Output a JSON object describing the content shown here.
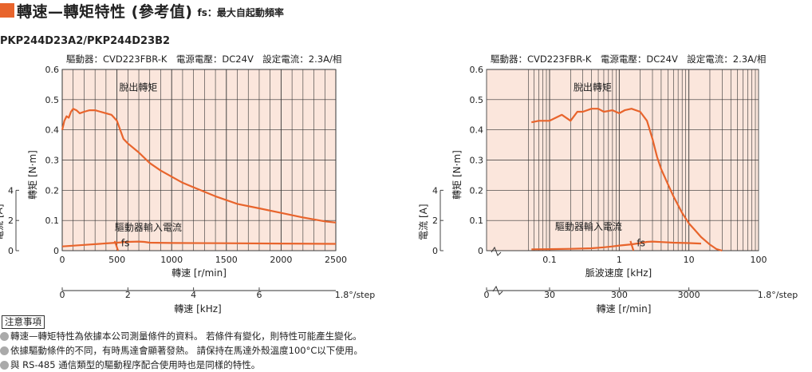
{
  "header": {
    "title": "轉速—轉矩特性 (參考值)",
    "subtitle": "fs：最大自起動頻率"
  },
  "model_label": "PKP244D23A2/PKP244D23B2",
  "notes": {
    "title": "注意事項",
    "items": [
      "轉速—轉矩特性為依據本公司測量條件的資料。 若條件有變化，則特性可能產生變化。",
      "依據驅動條件的不同，有時馬達會顯著發熱。 請保持在馬達外殼溫度100°C以下使用。",
      "與 RS-485 通信類型的驅動程序配合使用時也是同樣的特性。"
    ]
  },
  "colors": {
    "accent": "#e8642c",
    "curve": "#e8642c",
    "plot_bg": "#fbe6dc",
    "grid": "#333333"
  },
  "chart_data": [
    {
      "type": "line",
      "conditions": "驅動器：CVD223FBR-K　電源電壓：DC24V　設定電流：2.3A/相",
      "x_axis": {
        "label": "轉速 [r/min]",
        "range": [
          0,
          2500
        ],
        "ticks": [
          "0",
          "500",
          "1000",
          "1500",
          "2000",
          "2500"
        ]
      },
      "x_axis2": {
        "label": "轉速 [kHz]",
        "range": [
          0,
          8.333
        ],
        "ticks": [
          "0",
          "2",
          "4",
          "6"
        ],
        "end_label": "1.8°/step"
      },
      "y_axis": {
        "label": "轉矩 [N·m]",
        "range": [
          0,
          0.6
        ],
        "ticks": [
          "0",
          "0.1",
          "0.2",
          "0.3",
          "0.4",
          "0.5",
          "0.6"
        ]
      },
      "y_axis2": {
        "label": "電流 [A]",
        "range": [
          0,
          4
        ],
        "ticks": [
          "0",
          "2",
          "4"
        ]
      },
      "grid": true,
      "series": [
        {
          "name": "脫出轉矩",
          "axis": "torque",
          "x": [
            0,
            20,
            40,
            60,
            80,
            100,
            130,
            160,
            200,
            250,
            300,
            350,
            400,
            450,
            500,
            530,
            560,
            600,
            700,
            800,
            900,
            1000,
            1100,
            1200,
            1400,
            1600,
            1800,
            2000,
            2200,
            2400,
            2500
          ],
          "y": [
            0.4,
            0.43,
            0.445,
            0.44,
            0.46,
            0.47,
            0.465,
            0.455,
            0.46,
            0.465,
            0.465,
            0.46,
            0.455,
            0.45,
            0.43,
            0.4,
            0.37,
            0.355,
            0.325,
            0.29,
            0.265,
            0.245,
            0.225,
            0.21,
            0.18,
            0.155,
            0.14,
            0.125,
            0.11,
            0.097,
            0.093
          ]
        },
        {
          "name": "驅動器輸入電流",
          "axis": "current",
          "x": [
            0,
            200,
            400,
            500,
            600,
            700,
            750,
            800,
            1000,
            1500,
            2000,
            2500
          ],
          "y": [
            0.28,
            0.38,
            0.48,
            0.53,
            0.58,
            0.6,
            0.58,
            0.53,
            0.51,
            0.49,
            0.47,
            0.45
          ]
        },
        {
          "name": "fs",
          "axis": "torque",
          "x": [
            480,
            510
          ],
          "y": [
            0.032,
            0.0
          ]
        }
      ]
    },
    {
      "type": "line",
      "conditions": "驅動器：CVD223FBR-K　電源電壓：DC24V　設定電流：2.3A/相",
      "x_axis": {
        "label": "脈波速度 [kHz]",
        "scale": "log",
        "range": [
          0.05,
          100
        ],
        "ticks": [
          "0.1",
          "1",
          "10",
          "100"
        ]
      },
      "x_axis2": {
        "label": "轉速 [r/min]",
        "scale": "log",
        "ticks": [
          "0",
          "30",
          "300",
          "3000"
        ],
        "end_label": "1.8°/step"
      },
      "y_axis": {
        "label": "轉矩 [N·m]",
        "range": [
          0,
          0.6
        ],
        "ticks": [
          "0",
          "0.1",
          "0.2",
          "0.3",
          "0.4",
          "0.5",
          "0.6"
        ]
      },
      "y_axis2": {
        "label": "電流 [A]",
        "range": [
          0,
          4
        ],
        "ticks": [
          "0",
          "2",
          "4"
        ]
      },
      "grid": true,
      "series": [
        {
          "name": "脫出轉矩",
          "axis": "torque",
          "x": [
            0.055,
            0.07,
            0.1,
            0.15,
            0.2,
            0.25,
            0.3,
            0.4,
            0.5,
            0.6,
            0.8,
            1.0,
            1.2,
            1.5,
            2.0,
            2.5,
            3.0,
            3.5,
            4.0,
            5.0,
            6.0,
            8.0,
            10,
            12,
            15,
            20,
            25,
            30
          ],
          "y": [
            0.425,
            0.43,
            0.43,
            0.45,
            0.43,
            0.46,
            0.46,
            0.47,
            0.47,
            0.46,
            0.465,
            0.455,
            0.465,
            0.47,
            0.46,
            0.43,
            0.37,
            0.31,
            0.27,
            0.22,
            0.18,
            0.125,
            0.09,
            0.07,
            0.045,
            0.02,
            0.005,
            0.0
          ]
        },
        {
          "name": "驅動器輸入電流",
          "axis": "current",
          "x": [
            0.055,
            0.1,
            0.2,
            0.4,
            0.6,
            0.8,
            1.0,
            1.5,
            2.0,
            2.5,
            3.0,
            4.0,
            6.0,
            10,
            15
          ],
          "y": [
            0.09,
            0.1,
            0.12,
            0.16,
            0.22,
            0.28,
            0.34,
            0.42,
            0.5,
            0.58,
            0.6,
            0.57,
            0.53,
            0.5,
            0.47
          ]
        },
        {
          "name": "fs",
          "axis": "torque",
          "x": [
            1.45,
            1.6
          ],
          "y": [
            0.032,
            0.0
          ]
        }
      ]
    }
  ]
}
